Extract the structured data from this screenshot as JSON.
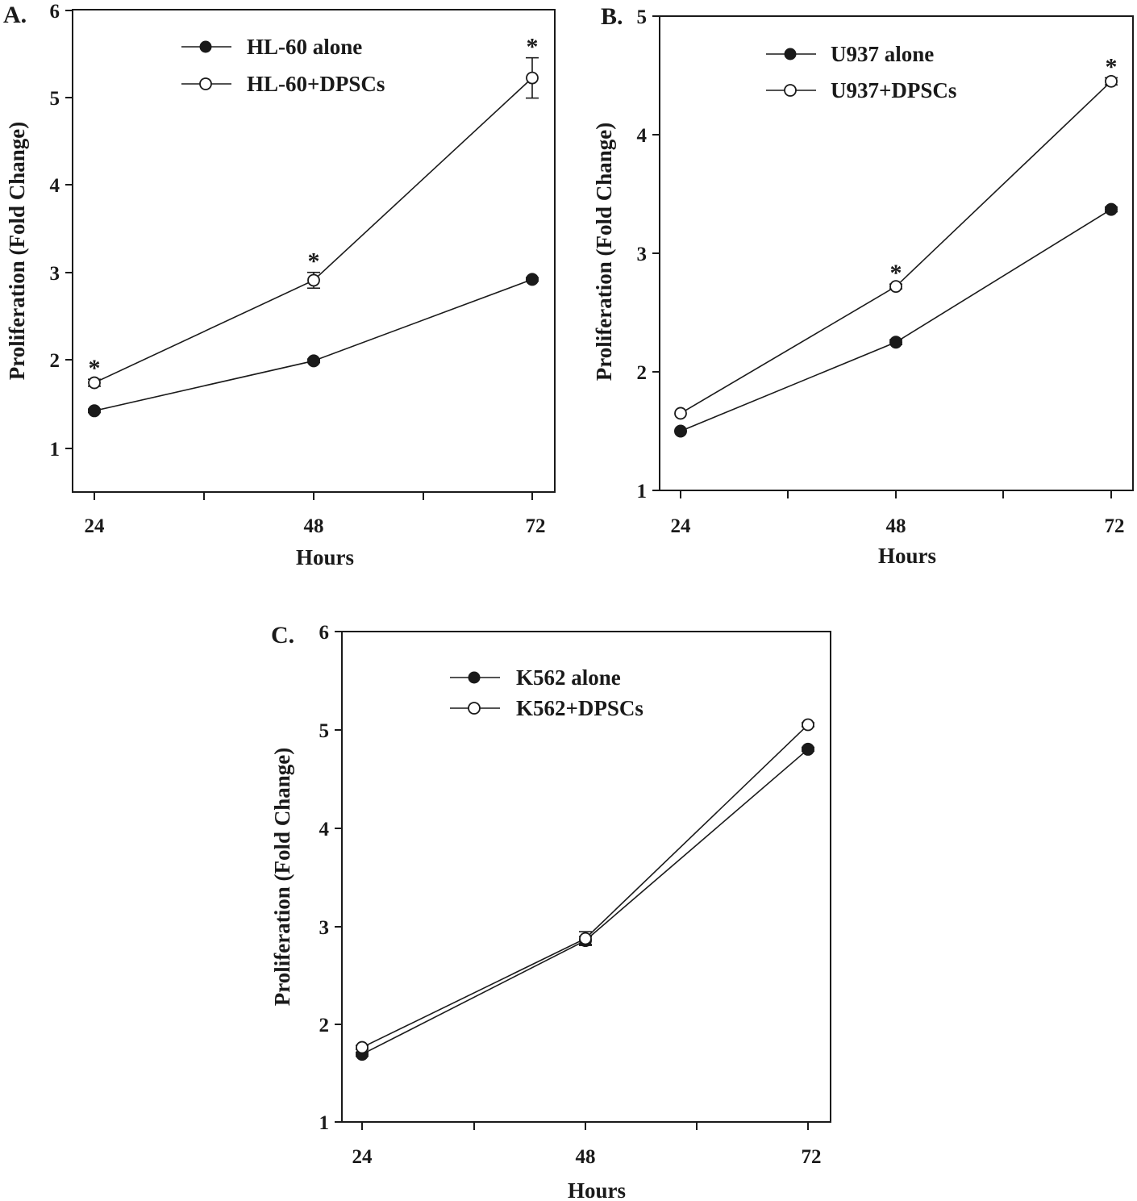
{
  "chart_data": [
    {
      "type": "line",
      "panel_label": "A.",
      "xlabel": "Hours",
      "ylabel": "Proliferation (Fold Change)",
      "x": [
        24,
        48,
        72
      ],
      "x_ticks": [
        "24",
        "48",
        "72"
      ],
      "y_ticks": [
        "1",
        "2",
        "3",
        "4",
        "5",
        "6"
      ],
      "ylim": [
        0.5,
        6
      ],
      "series": [
        {
          "name": "HL-60 alone",
          "marker": "filled",
          "values": [
            1.43,
            2.0,
            2.93
          ],
          "errors": [
            0.02,
            0.02,
            0.02
          ]
        },
        {
          "name": "HL-60+DPSCs",
          "marker": "open",
          "values": [
            1.75,
            2.92,
            5.23
          ],
          "errors": [
            0.04,
            0.09,
            0.23
          ]
        }
      ],
      "significance": [
        "*",
        "*",
        "*"
      ],
      "legend": "top-left"
    },
    {
      "type": "line",
      "panel_label": "B.",
      "xlabel": "Hours",
      "ylabel": "Proliferation (Fold Change)",
      "x": [
        24,
        48,
        72
      ],
      "x_ticks": [
        "24",
        "48",
        "72"
      ],
      "y_ticks": [
        "1",
        "2",
        "3",
        "4",
        "5"
      ],
      "ylim": [
        1,
        5
      ],
      "series": [
        {
          "name": "U937 alone",
          "marker": "filled",
          "values": [
            1.5,
            2.25,
            3.37
          ],
          "errors": [
            0.01,
            0.02,
            0.02
          ]
        },
        {
          "name": "U937+DPSCs",
          "marker": "open",
          "values": [
            1.65,
            2.72,
            4.45
          ],
          "errors": [
            0.01,
            0.02,
            0.03
          ]
        }
      ],
      "significance": [
        "",
        "*",
        "*"
      ],
      "legend": "top-left"
    },
    {
      "type": "line",
      "panel_label": "C.",
      "xlabel": "Hours",
      "ylabel": "Proliferation (Fold Change)",
      "x": [
        24,
        48,
        72
      ],
      "x_ticks": [
        "24",
        "48",
        "72"
      ],
      "y_ticks": [
        "1",
        "2",
        "3",
        "4",
        "5",
        "6"
      ],
      "ylim": [
        1,
        6
      ],
      "series": [
        {
          "name": "K562 alone",
          "marker": "filled",
          "values": [
            1.69,
            2.85,
            4.8
          ],
          "errors": [
            0.02,
            0.04,
            0.02
          ]
        },
        {
          "name": "K562+DPSCs",
          "marker": "open",
          "values": [
            1.76,
            2.87,
            5.05
          ],
          "errors": [
            0.02,
            0.07,
            0.02
          ]
        }
      ],
      "significance": [
        "",
        "",
        ""
      ],
      "legend": "top-left"
    }
  ]
}
